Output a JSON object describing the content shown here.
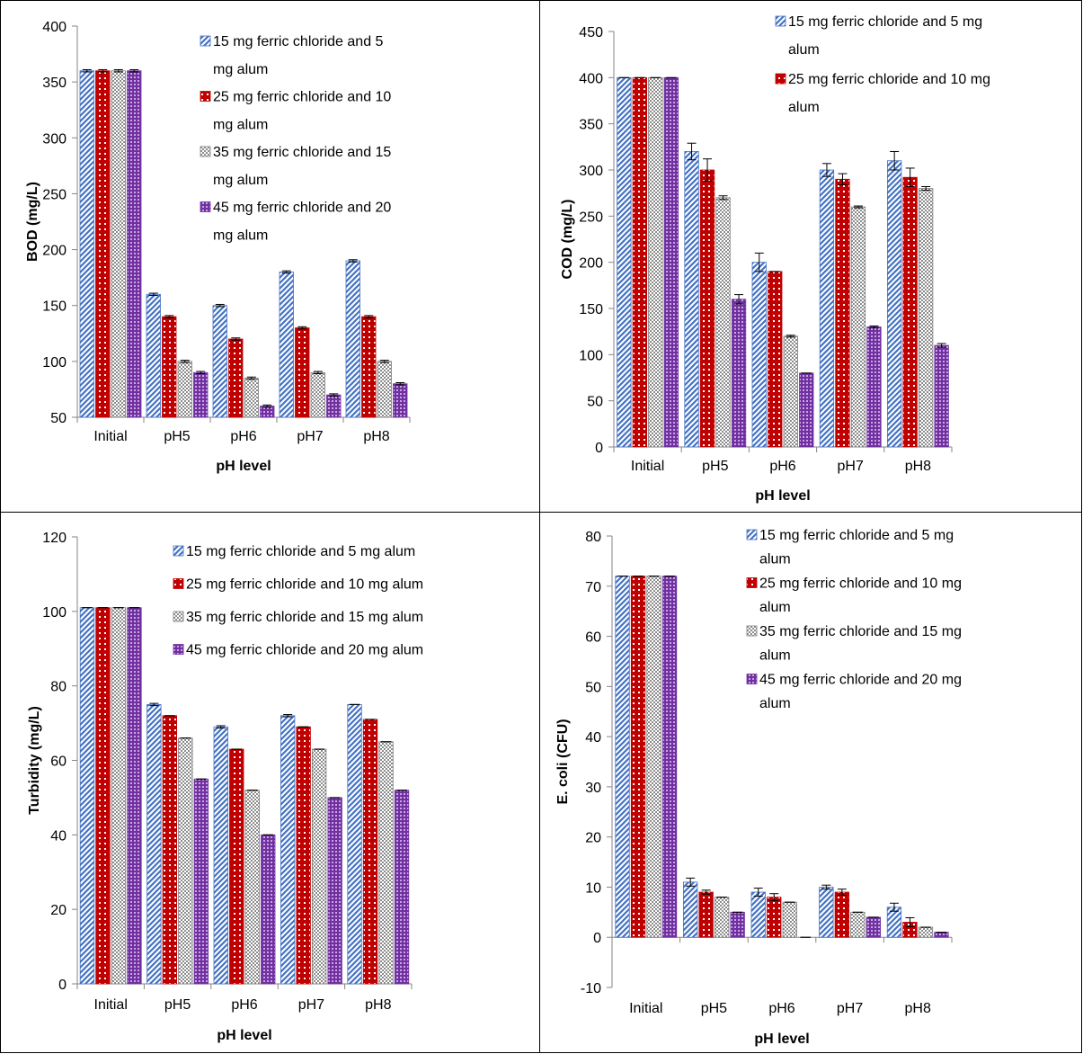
{
  "chart_data": [
    {
      "type": "bar",
      "categories": [
        "Initial",
        "pH5",
        "pH6",
        "pH7",
        "pH8"
      ],
      "xlabel": "pH level",
      "ylabel": "BOD (mg/L)",
      "ylim": [
        50,
        400
      ],
      "yticks": [
        50,
        100,
        150,
        200,
        250,
        300,
        350,
        400
      ],
      "legend_position": "top-right",
      "series": [
        {
          "name": "15 mg ferric chloride and 5 mg alum",
          "values": [
            360,
            160,
            150,
            180,
            190
          ],
          "errors": [
            1,
            1,
            1,
            1,
            1
          ]
        },
        {
          "name": "25 mg ferric chloride and 10 mg alum",
          "values": [
            360,
            140,
            120,
            130,
            140
          ],
          "errors": [
            1,
            1,
            1,
            1,
            1
          ]
        },
        {
          "name": "35 mg ferric chloride and 15 mg alum",
          "values": [
            360,
            100,
            85,
            90,
            100
          ],
          "errors": [
            1,
            1,
            1,
            1,
            1
          ]
        },
        {
          "name": "45 mg ferric chloride and 20 mg alum",
          "values": [
            360,
            90,
            60,
            70,
            80
          ],
          "errors": [
            1,
            1,
            1,
            1,
            1
          ]
        }
      ]
    },
    {
      "type": "bar",
      "categories": [
        "Initial",
        "pH5",
        "pH6",
        "pH7",
        "pH8"
      ],
      "xlabel": "pH level",
      "ylabel": "COD (mg/L)",
      "ylim": [
        0,
        450
      ],
      "yticks": [
        0,
        50,
        100,
        150,
        200,
        250,
        300,
        350,
        400,
        450
      ],
      "legend_position": "top-right",
      "series": [
        {
          "name": "15 mg ferric chloride and 5 mg alum",
          "values": [
            400,
            320,
            200,
            300,
            310
          ],
          "errors": [
            0,
            9,
            10,
            7,
            10
          ]
        },
        {
          "name": "25 mg ferric chloride and 10 mg alum",
          "values": [
            400,
            300,
            190,
            290,
            292
          ],
          "errors": [
            0,
            12,
            0,
            6,
            10
          ]
        },
        {
          "name": "35 mg ferric chloride and 15 mg alum",
          "values": [
            400,
            270,
            120,
            260,
            280
          ],
          "errors": [
            0,
            2,
            1,
            1,
            2
          ]
        },
        {
          "name": "45 mg ferric chloride and 20 mg alum",
          "values": [
            400,
            160,
            80,
            130,
            110
          ],
          "errors": [
            0,
            5,
            0,
            1,
            2
          ]
        }
      ]
    },
    {
      "type": "bar",
      "categories": [
        "Initial",
        "pH5",
        "pH6",
        "pH7",
        "pH8"
      ],
      "xlabel": "pH level",
      "ylabel": "Turbidity (mg/L)",
      "ylim": [
        0,
        120
      ],
      "yticks": [
        0,
        20,
        40,
        60,
        80,
        100,
        120
      ],
      "legend_position": "top-right",
      "series": [
        {
          "name": "15 mg ferric chloride and 5 mg alum",
          "values": [
            101,
            75,
            69,
            72,
            75
          ],
          "errors": [
            0,
            0.3,
            0.3,
            0.3,
            0
          ]
        },
        {
          "name": "25 mg ferric chloride and 10 mg alum",
          "values": [
            101,
            72,
            63,
            69,
            71
          ],
          "errors": [
            0,
            0,
            0,
            0,
            0
          ]
        },
        {
          "name": "35 mg ferric chloride and 15 mg alum",
          "values": [
            101,
            66,
            52,
            63,
            65
          ],
          "errors": [
            0,
            0,
            0,
            0,
            0
          ]
        },
        {
          "name": "45 mg ferric chloride and 20 mg alum",
          "values": [
            101,
            55,
            40,
            50,
            52
          ],
          "errors": [
            0,
            0,
            0,
            0,
            0
          ]
        }
      ]
    },
    {
      "type": "bar",
      "categories": [
        "Initial",
        "pH5",
        "pH6",
        "pH7",
        "pH8"
      ],
      "xlabel": "pH level",
      "ylabel": "E. coli (CFU)",
      "ylim": [
        -10,
        80
      ],
      "yticks": [
        -10,
        0,
        10,
        20,
        30,
        40,
        50,
        60,
        70,
        80
      ],
      "legend_position": "top-right",
      "series": [
        {
          "name": "15 mg ferric chloride and 5 mg alum",
          "values": [
            72,
            11,
            9,
            10,
            6
          ],
          "errors": [
            0,
            0.8,
            0.8,
            0.4,
            0.8
          ]
        },
        {
          "name": "25 mg ferric chloride and 10 mg alum",
          "values": [
            72,
            9,
            8,
            9,
            3
          ],
          "errors": [
            0,
            0.4,
            0.7,
            0.6,
            0.9
          ]
        },
        {
          "name": "35 mg ferric chloride and 15 mg alum",
          "values": [
            72,
            8,
            7,
            5,
            2
          ],
          "errors": [
            0,
            0,
            0,
            0,
            0
          ]
        },
        {
          "name": "45 mg ferric chloride and 20 mg alum",
          "values": [
            72,
            5,
            0,
            4,
            1
          ],
          "errors": [
            0,
            0,
            0,
            0,
            0
          ]
        }
      ]
    }
  ]
}
